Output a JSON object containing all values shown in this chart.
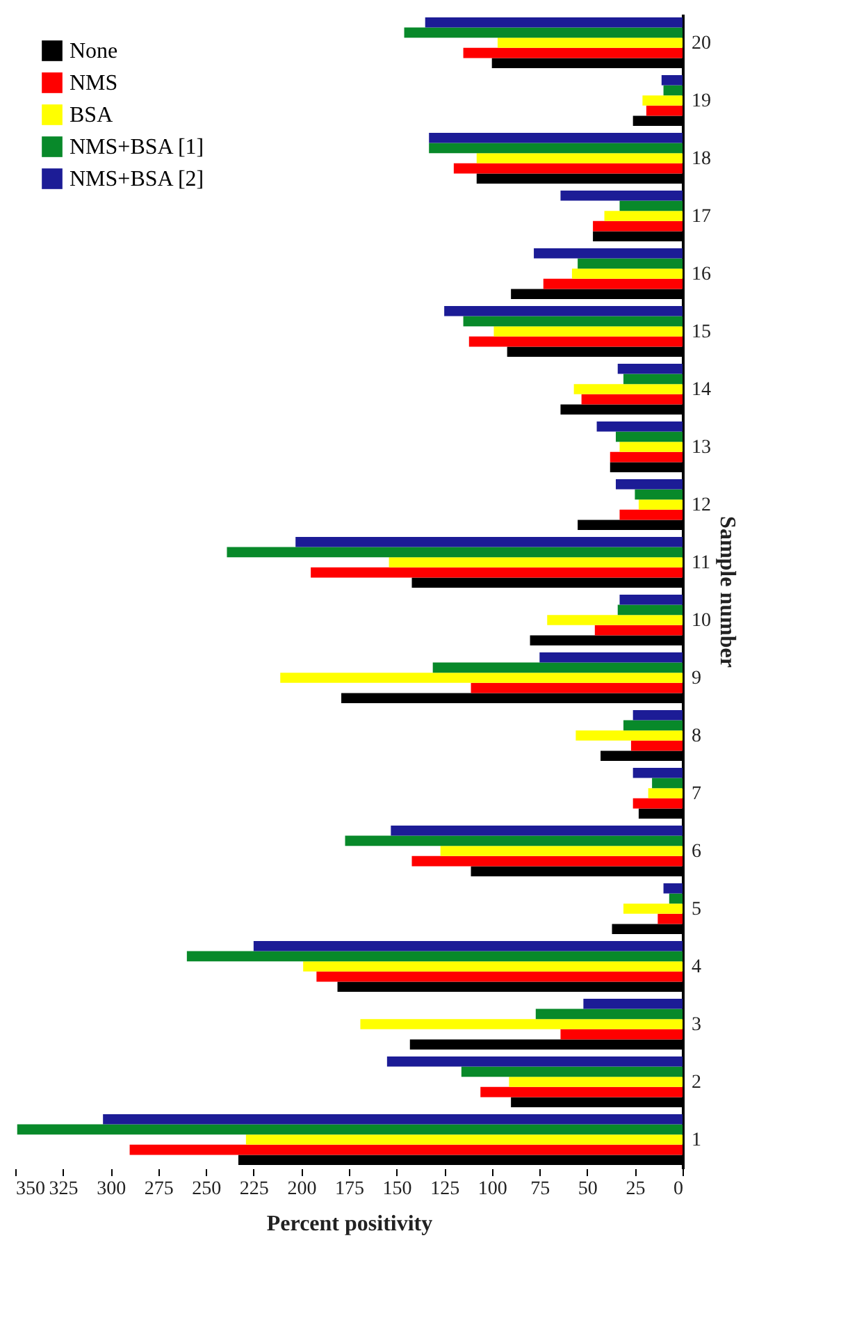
{
  "chart_data": {
    "type": "bar",
    "orientation": "horizontal",
    "xlabel": "Percent positivity",
    "ylabel": "Sample number",
    "categories": [
      "20",
      "19",
      "18",
      "17",
      "16",
      "15",
      "14",
      "13",
      "12",
      "11",
      "10",
      "9",
      "8",
      "7",
      "6",
      "5",
      "4",
      "3",
      "2",
      "1"
    ],
    "series": [
      {
        "name": "None",
        "color": "#000000",
        "values": [
          100,
          26,
          108,
          47,
          90,
          92,
          64,
          38,
          55,
          142,
          80,
          179,
          43,
          23,
          111,
          37,
          181,
          143,
          90,
          233
        ]
      },
      {
        "name": "NMS",
        "color": "#ff0000",
        "values": [
          115,
          19,
          120,
          47,
          73,
          112,
          53,
          38,
          33,
          195,
          46,
          111,
          27,
          26,
          142,
          13,
          192,
          64,
          106,
          290
        ]
      },
      {
        "name": "BSA",
        "color": "#ffff00",
        "values": [
          97,
          21,
          108,
          41,
          58,
          99,
          57,
          33,
          23,
          154,
          71,
          211,
          56,
          18,
          127,
          31,
          199,
          169,
          91,
          229
        ]
      },
      {
        "name": "NMS+BSA [1]",
        "color": "#08892a",
        "values": [
          146,
          10,
          133,
          33,
          55,
          115,
          31,
          35,
          25,
          239,
          34,
          131,
          31,
          16,
          177,
          7,
          260,
          77,
          116,
          349
        ]
      },
      {
        "name": "NMS+BSA [2]",
        "color": "#1c1c96",
        "values": [
          135,
          11,
          133,
          64,
          78,
          125,
          34,
          45,
          35,
          203,
          33,
          75,
          26,
          26,
          153,
          10,
          225,
          52,
          155,
          304
        ]
      }
    ],
    "xlim": [
      350,
      0
    ],
    "xticks": [
      350,
      325,
      300,
      275,
      250,
      225,
      200,
      175,
      150,
      125,
      100,
      75,
      50,
      25,
      0
    ],
    "legend": "top left",
    "grid": false
  }
}
